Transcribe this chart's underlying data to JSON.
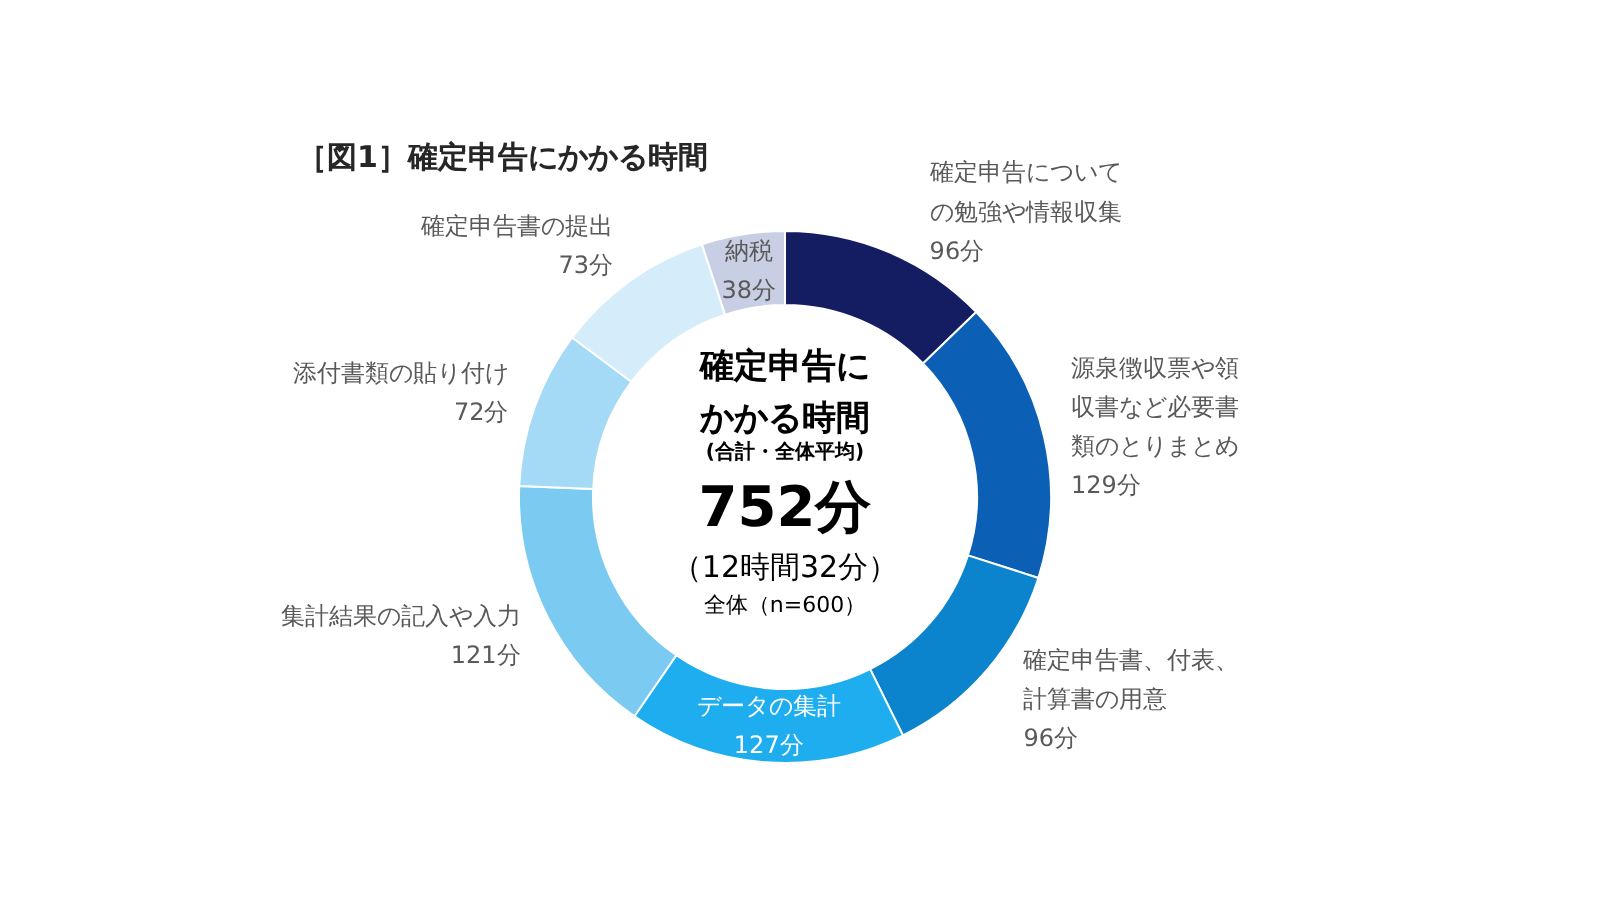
{
  "chart_data": {
    "type": "donut",
    "title": "［図1］確定申告にかかる時間",
    "categories": [
      "確定申告についての勉強や情報収集",
      "源泉徴収票や領収書など必要書類のとりまとめ",
      "確定申告書、付表、計算書の用意",
      "データの集計",
      "集計結果の記入や入力",
      "添付書類の貼り付け",
      "確定申告書の提出",
      "納税"
    ],
    "values": [
      96,
      129,
      96,
      127,
      121,
      72,
      73,
      38
    ],
    "value_labels": [
      "96分",
      "129分",
      "96分",
      "127分",
      "121分",
      "72分",
      "73分",
      "38分"
    ],
    "colors": [
      "#141c62",
      "#0b60b6",
      "#0c84cd",
      "#1eaef0",
      "#7bcaf1",
      "#a5daf6",
      "#d5edfb",
      "#c8cee3"
    ],
    "annotations": [
      "確定申告にかかる時間",
      "(合計・全体平均)",
      "752分",
      "（12時間32分）",
      "全体（n=600）"
    ]
  }
}
